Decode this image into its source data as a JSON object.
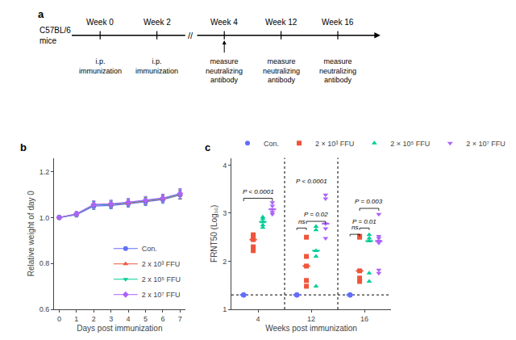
{
  "chart_data": [
    {
      "type": "timeline",
      "title": "a",
      "subject": "C57BL/6\nmice",
      "events": [
        {
          "label": "Week 0",
          "note": "i.p.\nimmunization"
        },
        {
          "label": "Week 2",
          "note": "i.p.\nimmunization"
        },
        {
          "label": "Week 4",
          "note": "measure\nneutralizing\nantibody"
        },
        {
          "label": "Week 12",
          "note": "measure\nneutralizing\nantibody"
        },
        {
          "label": "Week 16",
          "note": "measure\nneutralizing\nantibody"
        }
      ],
      "break": {
        "label": "//",
        "after": "Week 2"
      }
    },
    {
      "type": "line",
      "title": "b",
      "xlabel": "Days post immunization",
      "ylabel": "Relative weight of day 0",
      "x": [
        0,
        1,
        2,
        3,
        4,
        5,
        6,
        7
      ],
      "xlim": [
        -0.3,
        7.3
      ],
      "xticks": [
        0,
        1,
        2,
        3,
        4,
        5,
        6,
        7
      ],
      "ylim": [
        0.6,
        1.26
      ],
      "yticks": [
        0.6,
        0.8,
        {
          "value": 1.0,
          "label": "1.0"
        },
        1.2
      ],
      "grid": false,
      "legend": "lower right",
      "series": [
        {
          "name": "Con.",
          "marker": "circle",
          "values": [
            1.0,
            1.012,
            1.05,
            1.053,
            1.06,
            1.068,
            1.078,
            1.098
          ],
          "errors": [
            0.008,
            0.01,
            0.015,
            0.015,
            0.015,
            0.016,
            0.016,
            0.018
          ]
        },
        {
          "name": "2 x 10³ FFU",
          "marker": "triangle-up",
          "values": [
            1.0,
            1.015,
            1.055,
            1.057,
            1.063,
            1.072,
            1.082,
            1.1
          ],
          "errors": [
            0.008,
            0.01,
            0.015,
            0.015,
            0.015,
            0.016,
            0.016,
            0.02
          ]
        },
        {
          "name": "2 x 10⁵ FFU",
          "marker": "triangle-down",
          "values": [
            1.0,
            1.015,
            1.055,
            1.058,
            1.065,
            1.073,
            1.083,
            1.102
          ],
          "errors": [
            0.008,
            0.01,
            0.015,
            0.016,
            0.016,
            0.016,
            0.017,
            0.02
          ]
        },
        {
          "name": "2 x 10⁷ FFU",
          "marker": "diamond",
          "values": [
            1.0,
            1.016,
            1.057,
            1.06,
            1.067,
            1.075,
            1.085,
            1.105
          ],
          "errors": [
            0.008,
            0.01,
            0.016,
            0.016,
            0.016,
            0.017,
            0.017,
            0.021
          ]
        }
      ]
    },
    {
      "type": "scatter",
      "title": "c",
      "xlabel": "Weeks post immunization",
      "ylabel": "FRNT50 (Log₁₀)",
      "categories": [
        "4",
        "12",
        "16"
      ],
      "ylim": [
        1.0,
        4.15
      ],
      "yticks": [
        1,
        2,
        3,
        4
      ],
      "grid": false,
      "legend": "top",
      "threshold": 1.3,
      "series": [
        {
          "name": "Con.",
          "marker": "circle",
          "values": [
            [
              1.3,
              1.3,
              1.3,
              1.3,
              1.3
            ],
            [
              1.3,
              1.3,
              1.3,
              1.3,
              1.3
            ],
            [
              1.3,
              1.3,
              1.3,
              1.3,
              1.3
            ]
          ],
          "medians": [
            1.3,
            1.3,
            1.3
          ]
        },
        {
          "name": "2 × 10³ FFU",
          "marker": "square",
          "values": [
            [
              2.22,
              2.3,
              2.45,
              2.5,
              2.55
            ],
            [
              1.48,
              1.6,
              1.9,
              2.1,
              2.5
            ],
            [
              1.58,
              1.65,
              1.8,
              2.5,
              2.52
            ]
          ],
          "medians": [
            2.45,
            1.9,
            1.8
          ]
        },
        {
          "name": "2 × 10⁵ FFU",
          "marker": "triangle-up",
          "values": [
            [
              2.7,
              2.75,
              2.82,
              2.88,
              2.92
            ],
            [
              1.48,
              2.1,
              2.22,
              2.65,
              2.72
            ],
            [
              1.58,
              1.75,
              2.42,
              2.48,
              2.55
            ]
          ],
          "medians": [
            2.82,
            2.22,
            2.42
          ]
        },
        {
          "name": "2 × 10⁷ FFU",
          "marker": "triangle-down",
          "values": [
            [
              2.98,
              3.02,
              3.08,
              3.15,
              3.22
            ],
            [
              2.48,
              2.68,
              2.78,
              3.3,
              3.38
            ],
            [
              1.75,
              1.82,
              2.38,
              2.42,
              2.48,
              2.52,
              2.98
            ]
          ],
          "medians": [
            3.08,
            2.78,
            2.42
          ]
        }
      ],
      "annotations": [
        {
          "text": "P < 0.0001",
          "x": "4"
        },
        {
          "text": "P < 0.0001",
          "x": "12"
        },
        {
          "text": "P = 0.02",
          "x": "12"
        },
        {
          "text": "ns",
          "x": "12"
        },
        {
          "text": "P = 0.003",
          "x": "16"
        },
        {
          "text": "P = 0.01",
          "x": "16"
        },
        {
          "text": "ns",
          "x": "16"
        }
      ]
    }
  ]
}
